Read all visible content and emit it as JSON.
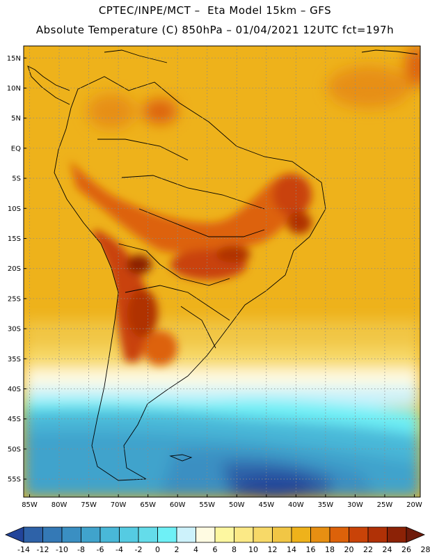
{
  "header": {
    "line1": "CPTEC/INPE/MCT –  Eta Model 15km – GFS",
    "line2": "Absolute Temperature (C) 850hPa – 01/04/2021 12UTC fct=197h"
  },
  "map": {
    "lon_range": [
      -86,
      -19
    ],
    "lat_range": [
      -58,
      17
    ],
    "lat_labels": [
      "15N",
      "10N",
      "5N",
      "EQ",
      "5S",
      "10S",
      "15S",
      "20S",
      "25S",
      "30S",
      "35S",
      "40S",
      "45S",
      "50S",
      "55S"
    ],
    "lon_labels": [
      "85W",
      "80W",
      "75W",
      "70W",
      "65W",
      "60W",
      "55W",
      "50W",
      "45W",
      "40W",
      "35W",
      "30W",
      "25W",
      "20W"
    ],
    "grid": "dotted"
  },
  "colorbar": {
    "ticks": [
      "-14",
      "-12",
      "-10",
      "-8",
      "-6",
      "-4",
      "-2",
      "0",
      "2",
      "4",
      "6",
      "8",
      "10",
      "12",
      "14",
      "16",
      "18",
      "20",
      "22",
      "24",
      "26",
      "28"
    ],
    "colors": [
      "#22449a",
      "#2e62a8",
      "#3479b6",
      "#3a8fc2",
      "#40a3cc",
      "#49b8d8",
      "#55cbe2",
      "#64dcea",
      "#6ef0f6",
      "#cdf2fb",
      "#fffbe2",
      "#fdf7a0",
      "#fbe986",
      "#f7d968",
      "#f1c645",
      "#eeb21b",
      "#e78f12",
      "#dd620a",
      "#c94308",
      "#b03106",
      "#8c2206",
      "#6e1b0b"
    ]
  }
}
